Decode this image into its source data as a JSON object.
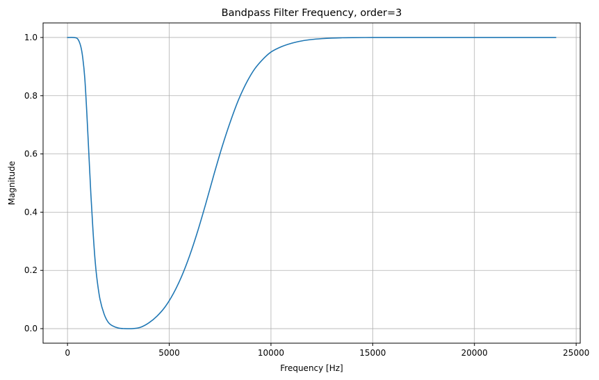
{
  "chart_data": {
    "type": "line",
    "title": "Bandpass Filter Frequency, order=3",
    "xlabel": "Frequency [Hz]",
    "ylabel": "Magnitude",
    "xlim": [
      -1200,
      25200
    ],
    "ylim": [
      -0.05,
      1.05
    ],
    "xticks": [
      0,
      5000,
      10000,
      15000,
      20000,
      25000
    ],
    "yticks": [
      0.0,
      0.2,
      0.4,
      0.6,
      0.8,
      1.0
    ],
    "xtick_labels": [
      "0",
      "5000",
      "10000",
      "15000",
      "20000",
      "25000"
    ],
    "ytick_labels": [
      "0.0",
      "0.2",
      "0.4",
      "0.6",
      "0.8",
      "1.0"
    ],
    "grid": true,
    "legend": "none",
    "series": [
      {
        "color": "#1f77b4",
        "x": [
          0,
          300,
          500,
          650,
          750,
          850,
          950,
          1050,
          1150,
          1250,
          1350,
          1450,
          1600,
          1800,
          2000,
          2200,
          2500,
          2800,
          3200,
          3600,
          4000,
          4400,
          4800,
          5200,
          5600,
          6000,
          6400,
          6800,
          7200,
          7600,
          8000,
          8400,
          8800,
          9200,
          9600,
          10000,
          10500,
          11000,
          11500,
          12000,
          12500,
          13000,
          13500,
          14000,
          15000,
          16000,
          18000,
          20000,
          22000,
          24000
        ],
        "y": [
          1.0,
          1.0,
          0.995,
          0.97,
          0.93,
          0.86,
          0.74,
          0.6,
          0.46,
          0.34,
          0.24,
          0.17,
          0.1,
          0.05,
          0.022,
          0.01,
          0.002,
          0.0,
          0.0,
          0.005,
          0.02,
          0.043,
          0.075,
          0.12,
          0.178,
          0.25,
          0.335,
          0.43,
          0.53,
          0.625,
          0.71,
          0.785,
          0.845,
          0.892,
          0.925,
          0.95,
          0.968,
          0.98,
          0.988,
          0.993,
          0.996,
          0.998,
          0.999,
          0.9995,
          1.0,
          1.0,
          1.0,
          1.0,
          1.0,
          1.0
        ]
      }
    ]
  }
}
